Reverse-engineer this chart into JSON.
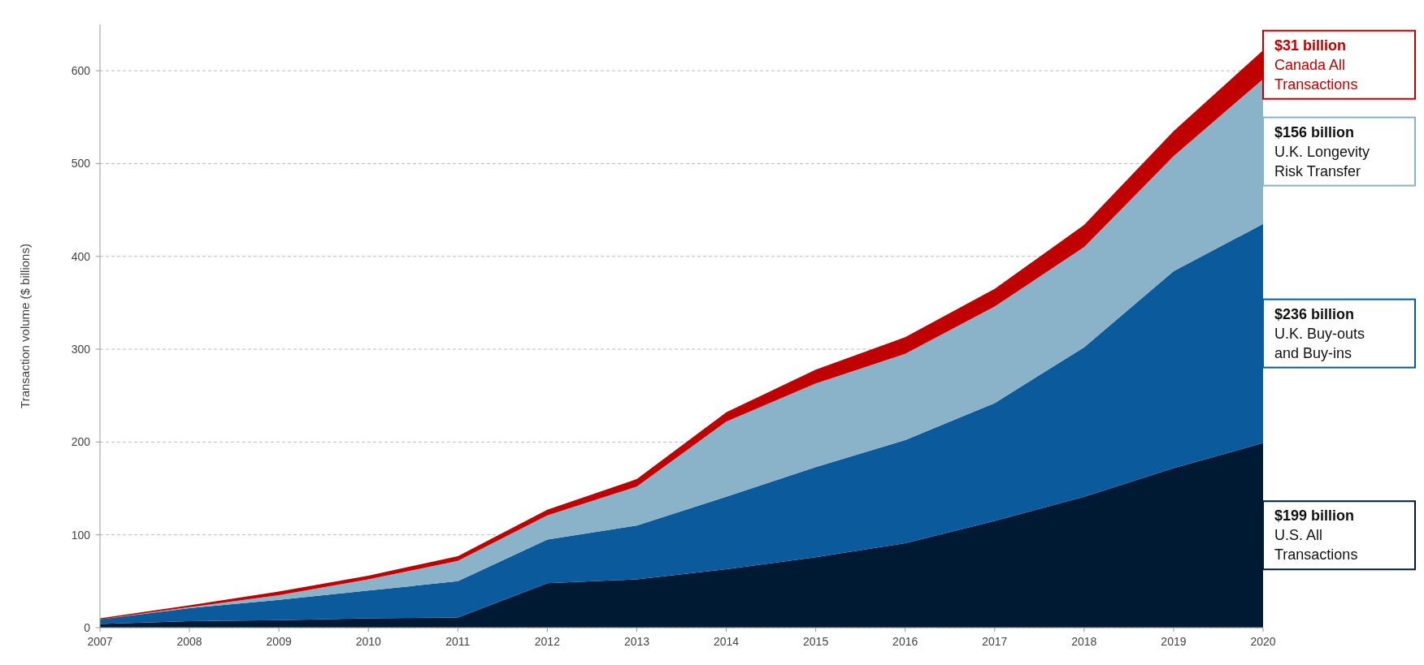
{
  "chart_data": {
    "type": "area",
    "stacked": true,
    "ylabel": "Transaction volume ($ billions)",
    "x": [
      2007,
      2008,
      2009,
      2010,
      2011,
      2012,
      2013,
      2014,
      2015,
      2016,
      2017,
      2018,
      2019,
      2020
    ],
    "xlim": [
      2007,
      2020
    ],
    "xticks": [
      2007,
      2008,
      2009,
      2010,
      2011,
      2012,
      2013,
      2014,
      2015,
      2016,
      2017,
      2018,
      2019,
      2020
    ],
    "ylim": [
      0,
      650
    ],
    "yticks": [
      0,
      100,
      200,
      300,
      400,
      500,
      600
    ],
    "grid": "y",
    "series": [
      {
        "color": "#001a33",
        "values": [
          4,
          7,
          8,
          10,
          11,
          48,
          52,
          63,
          76,
          91,
          115,
          141,
          172,
          199
        ]
      },
      {
        "color": "#0a5a9c",
        "values": [
          5,
          14,
          22,
          30,
          39,
          47,
          58,
          78,
          97,
          111,
          127,
          161,
          212,
          236
        ]
      },
      {
        "color": "#8ab2c9",
        "values": [
          0,
          1,
          5,
          12,
          22,
          26,
          42,
          81,
          90,
          93,
          104,
          108,
          124,
          156
        ]
      },
      {
        "color": "#c00000",
        "values": [
          1,
          2,
          4,
          4,
          5,
          6,
          8,
          10,
          15,
          18,
          19,
          24,
          27,
          31
        ]
      }
    ],
    "annotations": [
      "$199 billion\nU.S. All\nTransactions",
      "$236 billion\nU.K. Buy-outs\nand Buy-ins",
      "$156 billion\nU.K. Longevity\nRisk Transfer",
      "$31 billion\nCanada All\nTransactions"
    ]
  }
}
